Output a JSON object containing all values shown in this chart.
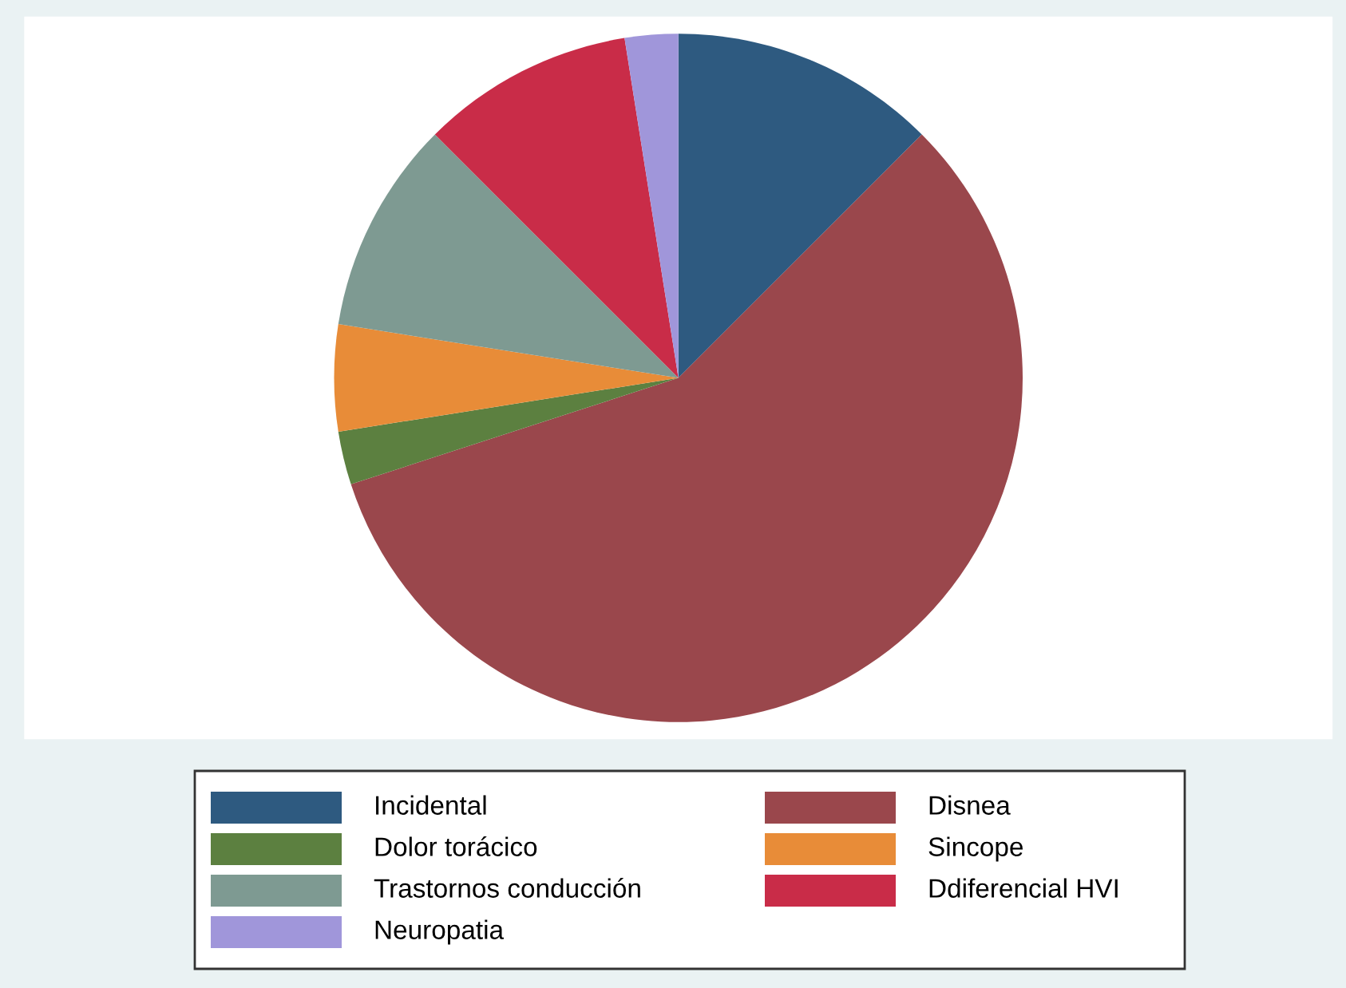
{
  "chart_data": {
    "type": "pie",
    "categories": [
      "Incidental",
      "Disnea",
      "Dolor torácico",
      "Sincope",
      "Trastornos conducción",
      "Ddiferencial HVI",
      "Neuropatia"
    ],
    "values": [
      12.5,
      57.5,
      2.5,
      5,
      10,
      10,
      2.5
    ],
    "colors": [
      "#2e5a80",
      "#9a474c",
      "#5c8040",
      "#e88c38",
      "#7e9a92",
      "#c92c48",
      "#a096da"
    ],
    "legend": "bottom"
  }
}
